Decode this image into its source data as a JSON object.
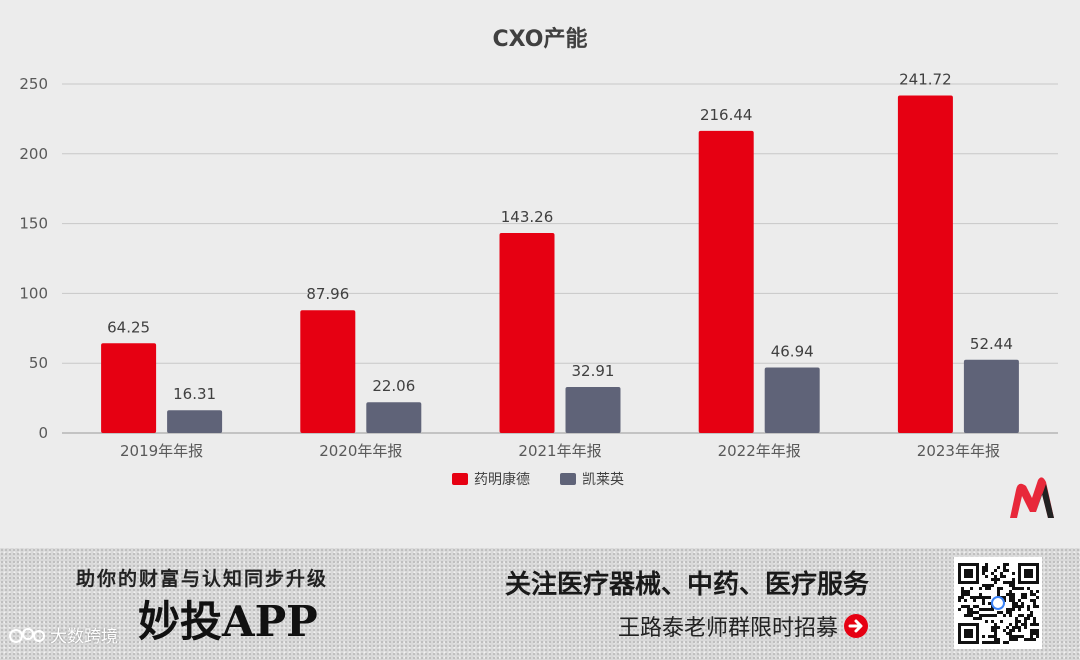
{
  "chart_data": {
    "type": "bar",
    "title": "CXO产能",
    "categories": [
      "2019年年报",
      "2020年年报",
      "2021年年报",
      "2022年年报",
      "2023年年报"
    ],
    "series": [
      {
        "name": "药明康德",
        "color": "#e60012",
        "values": [
          64.25,
          87.96,
          143.26,
          216.44,
          241.72
        ]
      },
      {
        "name": "凯莱英",
        "color": "#5f6378",
        "values": [
          16.31,
          22.06,
          32.91,
          46.94,
          52.44
        ]
      }
    ],
    "data_labels": [
      [
        "64.25",
        "87.96",
        "143.26",
        "216.44",
        "241.72"
      ],
      [
        "16.31",
        "22.06",
        "32.91",
        "46.94",
        "52.44"
      ]
    ],
    "y_ticks": [
      "0",
      "50",
      "100",
      "150",
      "200",
      "250"
    ],
    "y_tick_values": [
      0,
      50,
      100,
      150,
      200,
      250
    ],
    "ylim": [
      0,
      250
    ],
    "xlabel": "",
    "ylabel": "",
    "grid": true,
    "legend_position": "bottom"
  },
  "logo": {
    "name": "red-m-logo-icon"
  },
  "banner": {
    "slogan": "助你的财富与认知同步升级",
    "app_name": "妙投APP",
    "headline": "关注医疗器械、中药、医疗服务",
    "recruit": "王路泰老师群限时招募",
    "watermark": "大数跨境",
    "qr_icon": "qr-code-icon",
    "arrow_icon": "arrow-right-circle-icon"
  }
}
